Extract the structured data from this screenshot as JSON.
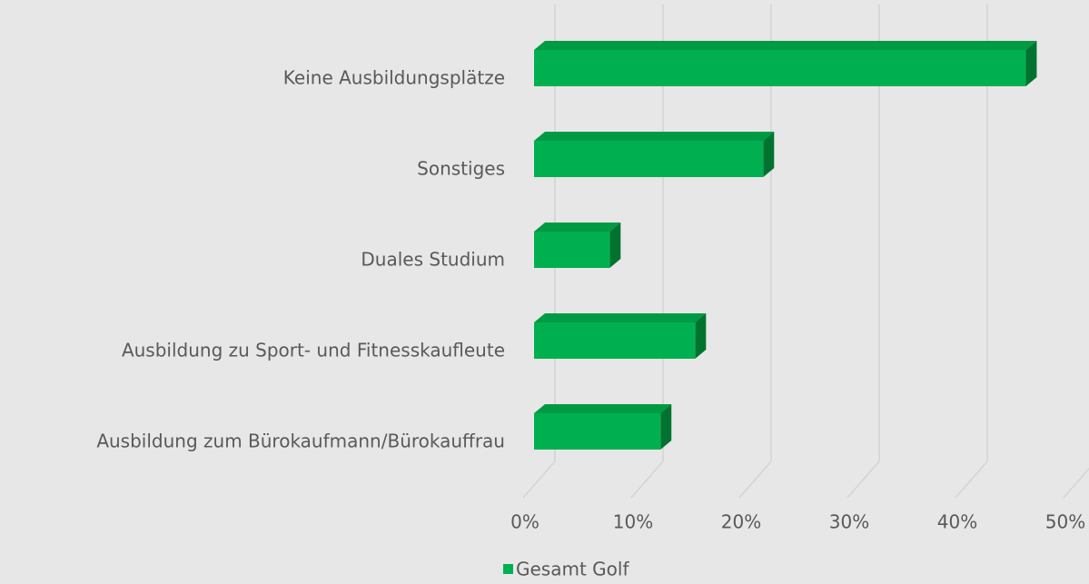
{
  "chart_data": {
    "type": "bar",
    "orientation": "horizontal",
    "categories": [
      "Keine Ausbildungsplätze",
      "Sonstiges",
      "Duales Studium",
      "Ausbildung zu Sport- und Fitnesskaufleute",
      "Ausbildung zum Bürokaufmann/Bürokauffrau"
    ],
    "series": [
      {
        "name": "Gesamt Golf",
        "color": "#00b050",
        "values": [
          45.5,
          21.2,
          7.0,
          14.9,
          11.7
        ]
      }
    ],
    "xlim": [
      0,
      50
    ],
    "xticks": [
      {
        "value": 0,
        "label": "0%"
      },
      {
        "value": 10,
        "label": "10%"
      },
      {
        "value": 20,
        "label": "20%"
      },
      {
        "value": 30,
        "label": "30%"
      },
      {
        "value": 40,
        "label": "40%"
      },
      {
        "value": 50,
        "label": "50%"
      }
    ],
    "grid": true,
    "legend": "bottom"
  }
}
